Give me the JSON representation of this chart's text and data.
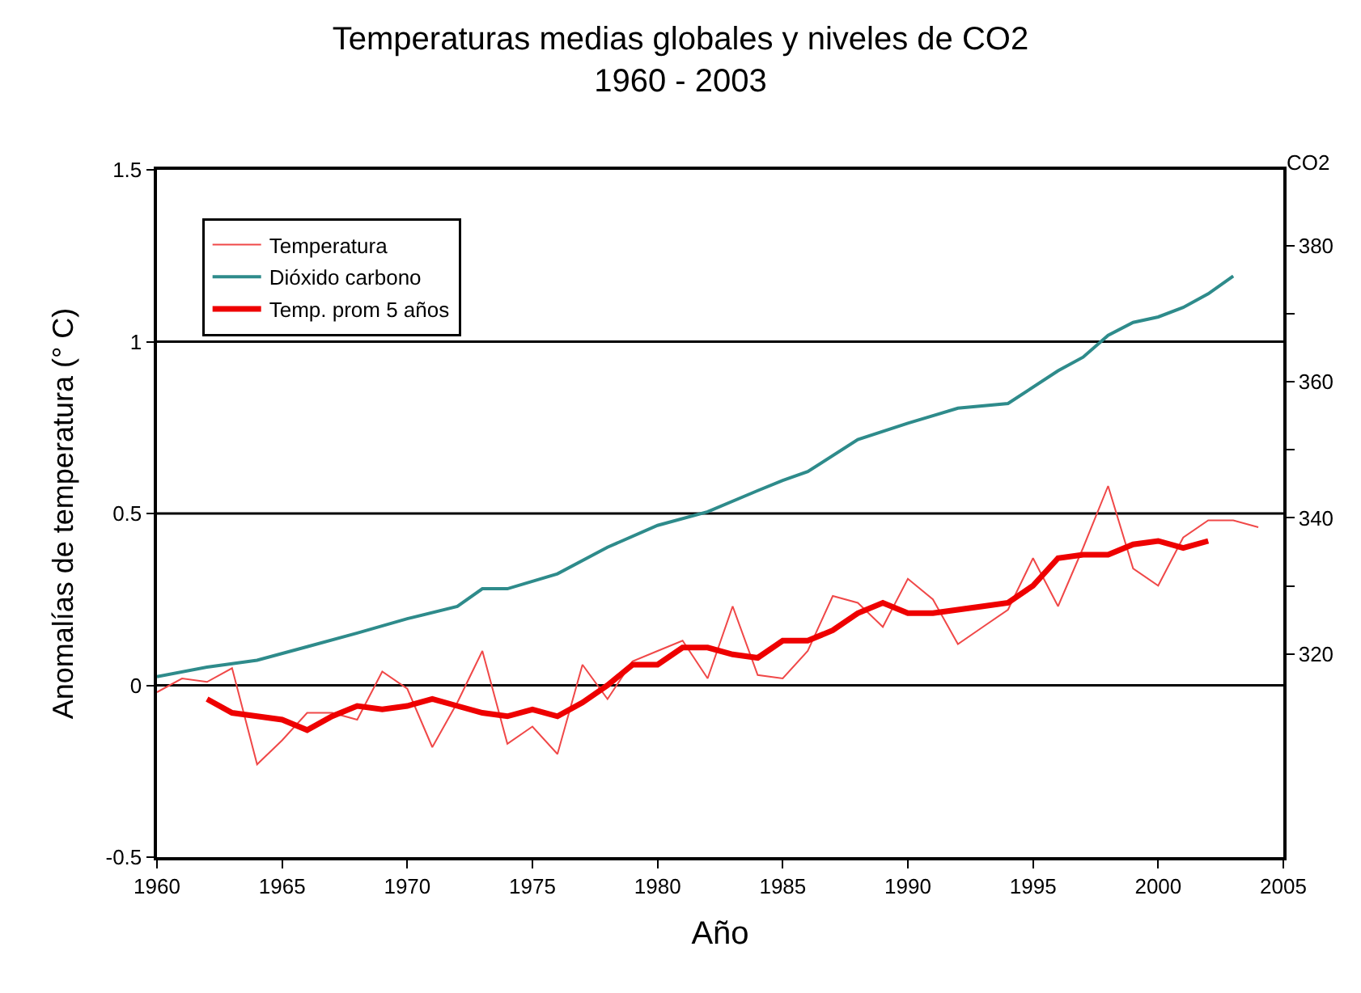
{
  "chart_data": {
    "type": "line",
    "title": "Temperaturas medias globales y niveles de CO2",
    "subtitle": "1960 - 2003",
    "xlabel": "Año",
    "ylabel": "Anomalías de temperatura (° C)",
    "y2label": "CO2",
    "legend": "top left",
    "grid": false,
    "xlim": [
      1960,
      2005
    ],
    "xticks": [
      1960,
      1965,
      1970,
      1975,
      1980,
      1985,
      1990,
      1995,
      2000,
      2005
    ],
    "ylim": [
      -0.5,
      1.5
    ],
    "yticks": [
      -0.5,
      0,
      0.5,
      1,
      1.5
    ],
    "y2lim": [
      290.2,
      391.1
    ],
    "y2ticks": [
      320,
      {
        "value": 330,
        "label": null
      },
      340,
      {
        "value": 350,
        "label": null
      },
      360,
      {
        "value": 370,
        "label": null
      },
      380
    ],
    "ref_lines": [
      {
        "axis": "y",
        "value": 0,
        "color": "#000000"
      },
      {
        "axis": "y",
        "value": 0.5,
        "color": "#000000"
      },
      {
        "axis": "y",
        "value": 1,
        "color": "#000000"
      }
    ],
    "series": [
      {
        "name": "Temperatura",
        "color": "#f04848",
        "x": [
          1960,
          1961,
          1962,
          1963,
          1964,
          1965,
          1966,
          1967,
          1968,
          1969,
          1970,
          1971,
          1972,
          1973,
          1974,
          1975,
          1976,
          1977,
          1978,
          1979,
          1980,
          1981,
          1982,
          1983,
          1984,
          1985,
          1986,
          1987,
          1988,
          1989,
          1990,
          1991,
          1992,
          1993,
          1994,
          1995,
          1996,
          1997,
          1998,
          1999,
          2000,
          2001,
          2002,
          2003,
          2004
        ],
        "values": [
          -0.02,
          0.02,
          0.01,
          0.05,
          -0.23,
          -0.16,
          -0.08,
          -0.08,
          -0.1,
          0.04,
          -0.01,
          -0.18,
          -0.05,
          0.1,
          -0.17,
          -0.12,
          -0.2,
          0.06,
          -0.04,
          0.07,
          0.1,
          0.13,
          0.02,
          0.23,
          0.03,
          0.02,
          0.1,
          0.26,
          0.24,
          0.17,
          0.31,
          0.25,
          0.12,
          0.17,
          0.22,
          0.37,
          0.23,
          0.4,
          0.58,
          0.34,
          0.29,
          0.43,
          0.48,
          0.48,
          0.46
        ]
      },
      {
        "name": "Dióxido carbono",
        "color": "#2e8b8b",
        "axis": "y2",
        "x": [
          1960,
          1962,
          1964,
          1966,
          1968,
          1970,
          1972,
          1973,
          1974,
          1975,
          1976,
          1978,
          1980,
          1982,
          1984,
          1985,
          1986,
          1988,
          1990,
          1992,
          1994,
          1996,
          1997,
          1998,
          1999,
          2000,
          2001,
          2002,
          2003
        ],
        "values": [
          316.7,
          318.1,
          319.1,
          321.1,
          323.1,
          325.2,
          327.0,
          329.6,
          329.6,
          330.7,
          331.8,
          335.7,
          338.9,
          340.9,
          344.0,
          345.5,
          346.8,
          351.5,
          353.9,
          356.1,
          356.8,
          361.6,
          363.6,
          366.8,
          368.7,
          369.5,
          370.9,
          372.9,
          375.5
        ]
      },
      {
        "name": "Temp. prom 5 años",
        "color": "#ee0000",
        "x": [
          1962,
          1963,
          1964,
          1965,
          1966,
          1967,
          1968,
          1969,
          1970,
          1971,
          1972,
          1973,
          1974,
          1975,
          1976,
          1977,
          1978,
          1979,
          1980,
          1981,
          1982,
          1983,
          1984,
          1985,
          1986,
          1987,
          1988,
          1989,
          1990,
          1991,
          1992,
          1993,
          1994,
          1995,
          1996,
          1997,
          1998,
          1999,
          2000,
          2001,
          2002
        ],
        "values": [
          -0.04,
          -0.08,
          -0.09,
          -0.1,
          -0.13,
          -0.09,
          -0.06,
          -0.07,
          -0.06,
          -0.04,
          -0.06,
          -0.08,
          -0.09,
          -0.07,
          -0.09,
          -0.05,
          0.0,
          0.06,
          0.06,
          0.11,
          0.11,
          0.09,
          0.08,
          0.13,
          0.13,
          0.16,
          0.21,
          0.24,
          0.21,
          0.21,
          0.22,
          0.23,
          0.24,
          0.29,
          0.37,
          0.38,
          0.38,
          0.41,
          0.42,
          0.4,
          0.42
        ]
      }
    ]
  }
}
